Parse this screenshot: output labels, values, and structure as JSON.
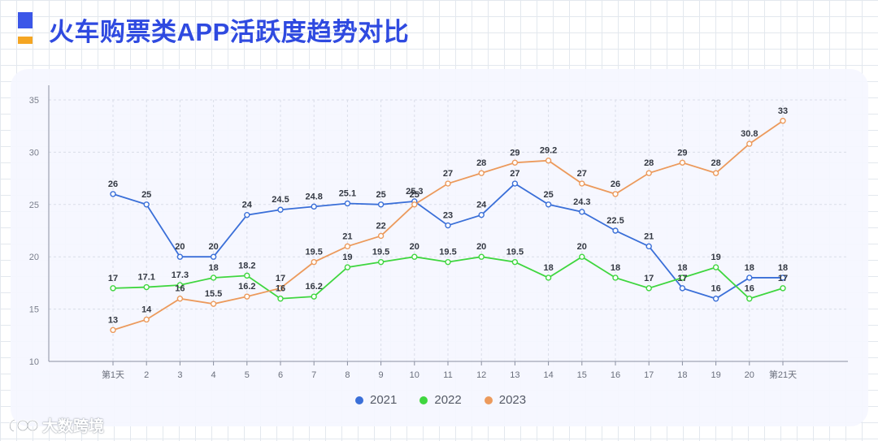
{
  "header": {
    "title": "火车购票类APP活跃度趋势对比",
    "accent_color": "#2f4ae0",
    "mark_colors": [
      "#3b56e8",
      "#f5a623"
    ]
  },
  "watermark": {
    "text": "大数跨境"
  },
  "chart_data": {
    "type": "line",
    "title": "",
    "xlabel": "",
    "ylabel": "",
    "ylim": [
      10,
      35
    ],
    "yticks": [
      10,
      15,
      20,
      25,
      30,
      35
    ],
    "grid": true,
    "legend_position": "bottom",
    "categories": [
      "第1天",
      "2",
      "3",
      "4",
      "5",
      "6",
      "7",
      "8",
      "9",
      "10",
      "11",
      "12",
      "13",
      "14",
      "15",
      "16",
      "17",
      "18",
      "19",
      "20",
      "第21天"
    ],
    "series": [
      {
        "name": "2021",
        "color": "#3a6fd8",
        "values": [
          26,
          25,
          20,
          20,
          24,
          24.5,
          24.8,
          25.1,
          25,
          25.3,
          23,
          24,
          27,
          25,
          24.3,
          22.5,
          21,
          17,
          16,
          18,
          18
        ]
      },
      {
        "name": "2022",
        "color": "#3fd63f",
        "values": [
          17,
          17.1,
          17.3,
          18,
          18.2,
          16,
          16.2,
          19,
          19.5,
          20,
          19.5,
          20,
          19.5,
          18,
          20,
          18,
          17,
          18,
          19,
          16,
          17
        ]
      },
      {
        "name": "2023",
        "color": "#ec9a5c",
        "values": [
          13,
          14,
          16,
          15.5,
          16.2,
          17,
          19.5,
          21,
          22,
          25,
          27,
          28,
          29,
          29.2,
          27,
          26,
          28,
          29,
          28,
          30.8,
          33
        ]
      }
    ]
  }
}
